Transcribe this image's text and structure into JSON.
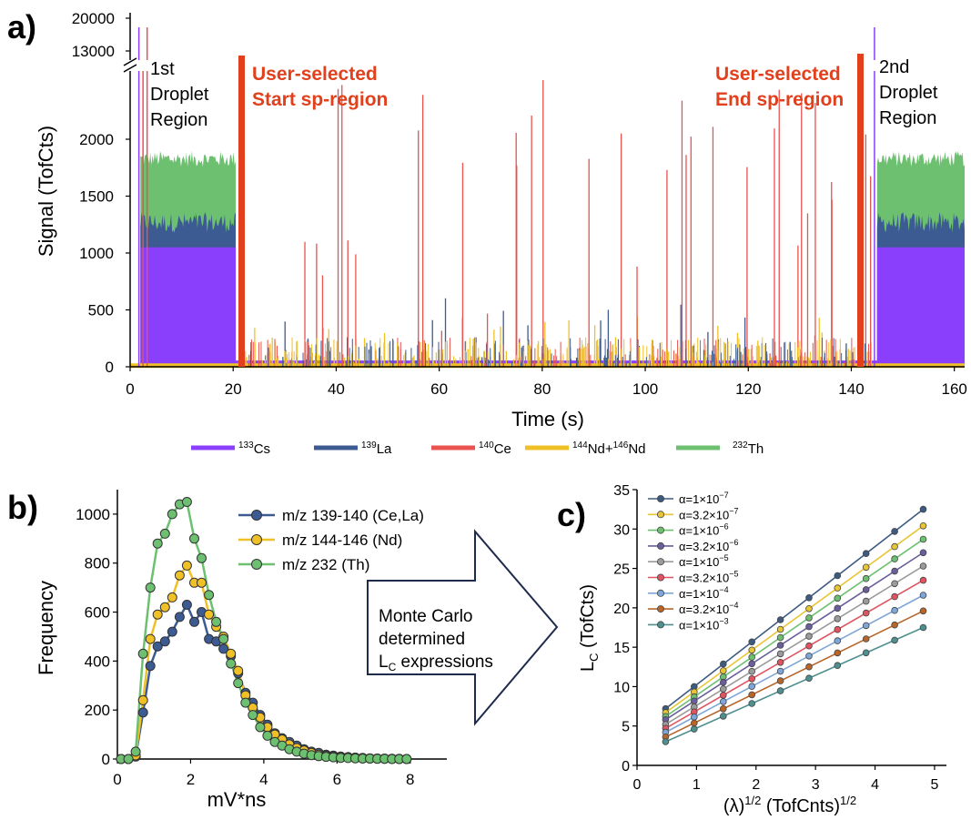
{
  "colors": {
    "cs": "#8a3ffc",
    "la": "#3b5b92",
    "ce": "#e8524f",
    "nd": "#f0c027",
    "th": "#6cc070",
    "annotation": "#e2401c",
    "arrow": "#1f2b4d",
    "c_series": [
      "#3d5a80",
      "#e9c535",
      "#6cc070",
      "#6a5e9b",
      "#9b9b9b",
      "#e05461",
      "#7ea6d9",
      "#b8652a",
      "#4e8f8f"
    ]
  },
  "panel_a": {
    "label": "a)",
    "chart_data": {
      "type": "line",
      "xlabel": "Time (s)",
      "ylabel": "Signal (TofCts)",
      "xlim": [
        0,
        162
      ],
      "ylim": [
        0,
        2600
      ],
      "y_break": {
        "lower_top": 2600,
        "upper_ticks": [
          "13000",
          "20000"
        ]
      },
      "x_ticks": [
        "0",
        "20",
        "40",
        "60",
        "80",
        "100",
        "120",
        "140",
        "160"
      ],
      "y_ticks": [
        "0",
        "500",
        "1000",
        "1500",
        "2000"
      ],
      "series": [
        {
          "name": "133Cs",
          "name_sup": "133",
          "name_base": "Cs"
        },
        {
          "name": "139La",
          "name_sup": "139",
          "name_base": "La"
        },
        {
          "name": "140Ce",
          "name_sup": "140",
          "name_base": "Ce"
        },
        {
          "name": "144Nd+146Nd",
          "name_sup": "144",
          "name_mid": "Nd+",
          "name_sup2": "146",
          "name_base": "Nd"
        },
        {
          "name": "232Th",
          "name_sup": "232",
          "name_base": "Th"
        }
      ],
      "droplet_levels": {
        "cs": 1050,
        "la": 1250,
        "th": 1800
      },
      "droplet_regions": [
        [
          2,
          20.5
        ],
        [
          145,
          162
        ]
      ],
      "markers": [
        {
          "x": 22,
          "label": "User-selected Start sp-region"
        },
        {
          "x": 142,
          "label": "User-selected End sp-region"
        }
      ],
      "annotations": {
        "start_line1": "User-selected",
        "start_line2": "Start sp-region",
        "end_line1": "User-selected",
        "end_line2": "End sp-region",
        "first_line1": "1st",
        "first_line2": "Droplet",
        "first_line3": "Region",
        "second_line1": "2nd",
        "second_line2": "Droplet",
        "second_line3": "Region"
      }
    }
  },
  "panel_b": {
    "label": "b)",
    "chart_data": {
      "type": "line",
      "xlabel": "mV*ns",
      "ylabel": "Frequency",
      "xlim": [
        0,
        9
      ],
      "ylim": [
        0,
        1100
      ],
      "x_ticks": [
        "0",
        "2",
        "4",
        "6",
        "8"
      ],
      "y_ticks": [
        "0",
        "200",
        "400",
        "600",
        "800",
        "1000"
      ],
      "x": [
        0.1,
        0.3,
        0.5,
        0.7,
        0.9,
        1.1,
        1.3,
        1.5,
        1.7,
        1.9,
        2.1,
        2.3,
        2.5,
        2.7,
        2.9,
        3.1,
        3.3,
        3.5,
        3.7,
        3.9,
        4.1,
        4.3,
        4.5,
        4.7,
        4.9,
        5.1,
        5.3,
        5.5,
        5.7,
        5.9,
        6.1,
        6.3,
        6.5,
        6.7,
        6.9,
        7.1,
        7.3,
        7.5,
        7.7,
        7.9
      ],
      "series": [
        {
          "name": "m/z 139-140 (Ce,La)",
          "values": [
            0,
            0,
            10,
            190,
            380,
            460,
            480,
            520,
            580,
            630,
            560,
            600,
            490,
            480,
            450,
            420,
            350,
            270,
            230,
            180,
            140,
            105,
            85,
            70,
            55,
            40,
            30,
            25,
            18,
            14,
            10,
            8,
            6,
            5,
            3,
            2,
            2,
            1,
            1,
            0
          ]
        },
        {
          "name": "m/z 144-146 (Nd)",
          "values": [
            0,
            0,
            15,
            240,
            490,
            590,
            620,
            660,
            750,
            790,
            720,
            720,
            590,
            540,
            500,
            430,
            360,
            260,
            210,
            170,
            130,
            100,
            80,
            60,
            45,
            35,
            25,
            18,
            13,
            10,
            8,
            6,
            4,
            3,
            2,
            2,
            1,
            1,
            0,
            0
          ]
        },
        {
          "name": "m/z 232 (Th)",
          "values": [
            0,
            0,
            30,
            430,
            700,
            880,
            920,
            1000,
            1040,
            1050,
            900,
            820,
            670,
            560,
            490,
            390,
            310,
            230,
            180,
            130,
            95,
            70,
            55,
            40,
            30,
            22,
            16,
            12,
            9,
            7,
            5,
            4,
            3,
            2,
            2,
            1,
            1,
            0,
            0,
            0
          ]
        }
      ]
    }
  },
  "arrow": {
    "line1": "Monte Carlo",
    "line2": "determined",
    "line3_main": "L",
    "line3_sub": "C",
    "line3_rest": " expressions"
  },
  "panel_c": {
    "label": "c)",
    "chart_data": {
      "type": "line",
      "xlabel": "(λ)^1/2 (TofCnts)^1/2",
      "xlabel_parts": {
        "a": "(λ)",
        "sup1": "1/2",
        "b": " (TofCnts)",
        "sup2": "1/2"
      },
      "ylabel": "LC (TofCts)",
      "ylabel_parts": {
        "main": "L",
        "sub": "C",
        "rest": " (TofCts)"
      },
      "xlim": [
        0,
        5.2
      ],
      "ylim": [
        0,
        35
      ],
      "x_ticks": [
        "0",
        "1",
        "2",
        "3",
        "4",
        "5"
      ],
      "y_ticks": [
        "0",
        "5",
        "10",
        "15",
        "20",
        "25",
        "30",
        "35"
      ],
      "x": [
        0.48,
        0.96,
        1.45,
        1.93,
        2.41,
        2.89,
        3.37,
        3.85,
        4.33,
        4.81
      ],
      "series": [
        {
          "name": "α=1×10−7",
          "pre": "α=1×10",
          "exp": "−7",
          "y0": 7.2,
          "y1": 32.5
        },
        {
          "name": "α=3.2×10−7",
          "pre": "α=3.2×10",
          "exp": "−7",
          "y0": 6.7,
          "y1": 30.4
        },
        {
          "name": "α=1×10−6",
          "pre": "α=1×10",
          "exp": "−6",
          "y0": 6.2,
          "y1": 28.7
        },
        {
          "name": "α=3.2×10−6",
          "pre": "α=3.2×10",
          "exp": "−6",
          "y0": 5.8,
          "y1": 27.0
        },
        {
          "name": "α=1×10−5",
          "pre": "α=1×10",
          "exp": "−5",
          "y0": 5.2,
          "y1": 25.3
        },
        {
          "name": "α=3.2×10−5",
          "pre": "α=3.2×10",
          "exp": "−5",
          "y0": 4.7,
          "y1": 23.5
        },
        {
          "name": "α=1×10−4",
          "pre": "α=1×10",
          "exp": "−4",
          "y0": 4.2,
          "y1": 21.6
        },
        {
          "name": "α=3.2×10−4",
          "pre": "α=3.2×10",
          "exp": "−4",
          "y0": 3.6,
          "y1": 19.6
        },
        {
          "name": "α=1×10−3",
          "pre": "α=1×10",
          "exp": "−3",
          "y0": 3.0,
          "y1": 17.5
        }
      ]
    }
  }
}
